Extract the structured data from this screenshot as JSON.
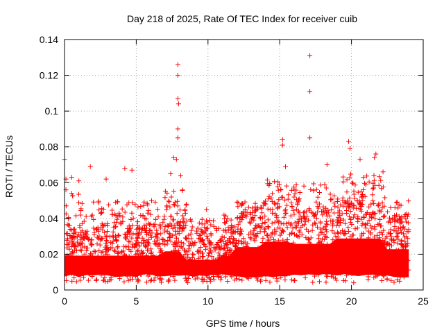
{
  "chart_data": {
    "type": "scatter",
    "title": "Day 218 of 2025, Rate Of TEC Index for receiver cuib",
    "xlabel": "GPS time / hours",
    "ylabel": "ROTI / TECUs",
    "xlim": [
      0,
      25
    ],
    "ylim": [
      0,
      0.14
    ],
    "xticks": [
      "0",
      "5",
      "10",
      "15",
      "20",
      "25"
    ],
    "yticks": [
      "0",
      "0.02",
      "0.04",
      "0.06",
      "0.08",
      "0.1",
      "0.12",
      "0.14"
    ],
    "grid": true,
    "marker": "+",
    "color": "#ff0000",
    "outliers": [
      {
        "x": 0.0,
        "y": 0.073
      },
      {
        "x": 0.1,
        "y": 0.062
      },
      {
        "x": 0.1,
        "y": 0.056
      },
      {
        "x": 0.5,
        "y": 0.063
      },
      {
        "x": 0.5,
        "y": 0.054
      },
      {
        "x": 1.0,
        "y": 0.061
      },
      {
        "x": 1.8,
        "y": 0.069
      },
      {
        "x": 2.9,
        "y": 0.062
      },
      {
        "x": 4.2,
        "y": 0.068
      },
      {
        "x": 4.7,
        "y": 0.067
      },
      {
        "x": 7.4,
        "y": 0.065
      },
      {
        "x": 7.6,
        "y": 0.074
      },
      {
        "x": 7.8,
        "y": 0.073
      },
      {
        "x": 7.9,
        "y": 0.126
      },
      {
        "x": 7.9,
        "y": 0.12
      },
      {
        "x": 7.9,
        "y": 0.107
      },
      {
        "x": 7.95,
        "y": 0.104
      },
      {
        "x": 7.9,
        "y": 0.09
      },
      {
        "x": 7.9,
        "y": 0.085
      },
      {
        "x": 8.1,
        "y": 0.064
      },
      {
        "x": 9.9,
        "y": 0.045
      },
      {
        "x": 15.2,
        "y": 0.084
      },
      {
        "x": 15.2,
        "y": 0.081
      },
      {
        "x": 15.4,
        "y": 0.069
      },
      {
        "x": 17.1,
        "y": 0.131
      },
      {
        "x": 17.1,
        "y": 0.111
      },
      {
        "x": 17.1,
        "y": 0.085
      },
      {
        "x": 18.3,
        "y": 0.07
      },
      {
        "x": 19.8,
        "y": 0.083
      },
      {
        "x": 19.9,
        "y": 0.079
      },
      {
        "x": 20.6,
        "y": 0.073
      },
      {
        "x": 21.6,
        "y": 0.074
      },
      {
        "x": 21.7,
        "y": 0.076
      },
      {
        "x": 22.2,
        "y": 0.066
      }
    ]
  }
}
